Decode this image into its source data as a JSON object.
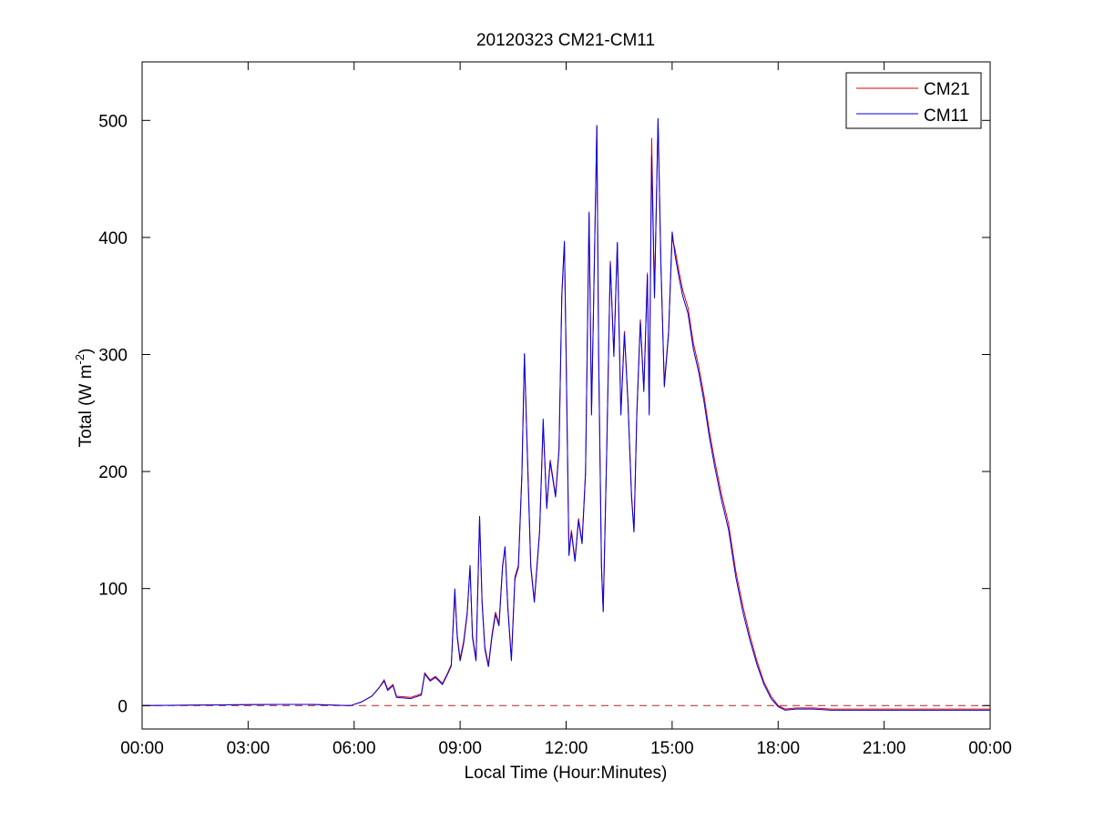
{
  "chart_data": {
    "type": "line",
    "title": "20120323 CM21-CM11",
    "xlabel": "Local Time (Hour:Minutes)",
    "ylabel": "Total (W m",
    "ylabel_sup": "-2",
    "ylabel_close": ")",
    "xlim": [
      0,
      24
    ],
    "ylim": [
      -20,
      550
    ],
    "x_ticks": [
      {
        "value": 0,
        "label": "00:00"
      },
      {
        "value": 3,
        "label": "03:00"
      },
      {
        "value": 6,
        "label": "06:00"
      },
      {
        "value": 9,
        "label": "09:00"
      },
      {
        "value": 12,
        "label": "12:00"
      },
      {
        "value": 15,
        "label": "15:00"
      },
      {
        "value": 18,
        "label": "18:00"
      },
      {
        "value": 21,
        "label": "21:00"
      },
      {
        "value": 24,
        "label": "00:00"
      }
    ],
    "y_ticks": [
      {
        "value": 0,
        "label": "0"
      },
      {
        "value": 100,
        "label": "100"
      },
      {
        "value": 200,
        "label": "200"
      },
      {
        "value": 300,
        "label": "300"
      },
      {
        "value": 400,
        "label": "400"
      },
      {
        "value": 500,
        "label": "500"
      }
    ],
    "grid": false,
    "legend_position": "top-right",
    "reference_line": {
      "y": 0,
      "style": "dashed",
      "color": "#b22222"
    },
    "series": [
      {
        "name": "CM21",
        "color": "#e00000",
        "points": [
          [
            0,
            0
          ],
          [
            3.8,
            1
          ],
          [
            4.8,
            1
          ],
          [
            5.9,
            0
          ],
          [
            6.2,
            3
          ],
          [
            6.5,
            8
          ],
          [
            6.7,
            15
          ],
          [
            6.85,
            22
          ],
          [
            6.95,
            14
          ],
          [
            7.1,
            18
          ],
          [
            7.2,
            8
          ],
          [
            7.6,
            7
          ],
          [
            7.9,
            10
          ],
          [
            8.0,
            28
          ],
          [
            8.15,
            22
          ],
          [
            8.3,
            25
          ],
          [
            8.5,
            19
          ],
          [
            8.65,
            28
          ],
          [
            8.75,
            35
          ],
          [
            8.85,
            95
          ],
          [
            8.92,
            60
          ],
          [
            9.0,
            40
          ],
          [
            9.1,
            55
          ],
          [
            9.2,
            80
          ],
          [
            9.28,
            118
          ],
          [
            9.35,
            60
          ],
          [
            9.45,
            40
          ],
          [
            9.55,
            160
          ],
          [
            9.62,
            90
          ],
          [
            9.7,
            50
          ],
          [
            9.8,
            35
          ],
          [
            9.9,
            60
          ],
          [
            10.0,
            80
          ],
          [
            10.1,
            70
          ],
          [
            10.2,
            120
          ],
          [
            10.27,
            135
          ],
          [
            10.35,
            85
          ],
          [
            10.45,
            40
          ],
          [
            10.55,
            110
          ],
          [
            10.65,
            120
          ],
          [
            10.75,
            200
          ],
          [
            10.82,
            300
          ],
          [
            10.9,
            220
          ],
          [
            11.0,
            120
          ],
          [
            11.1,
            90
          ],
          [
            11.25,
            150
          ],
          [
            11.35,
            240
          ],
          [
            11.45,
            170
          ],
          [
            11.55,
            210
          ],
          [
            11.7,
            180
          ],
          [
            11.8,
            220
          ],
          [
            11.88,
            350
          ],
          [
            11.95,
            395
          ],
          [
            12.0,
            300
          ],
          [
            12.08,
            130
          ],
          [
            12.15,
            150
          ],
          [
            12.25,
            125
          ],
          [
            12.35,
            160
          ],
          [
            12.45,
            140
          ],
          [
            12.55,
            200
          ],
          [
            12.65,
            420
          ],
          [
            12.72,
            250
          ],
          [
            12.8,
            380
          ],
          [
            12.87,
            495
          ],
          [
            12.92,
            300
          ],
          [
            13.0,
            120
          ],
          [
            13.05,
            80
          ],
          [
            13.15,
            220
          ],
          [
            13.25,
            380
          ],
          [
            13.35,
            300
          ],
          [
            13.45,
            395
          ],
          [
            13.55,
            250
          ],
          [
            13.65,
            320
          ],
          [
            13.75,
            260
          ],
          [
            13.85,
            180
          ],
          [
            13.92,
            150
          ],
          [
            14.0,
            250
          ],
          [
            14.1,
            330
          ],
          [
            14.2,
            270
          ],
          [
            14.3,
            370
          ],
          [
            14.35,
            250
          ],
          [
            14.42,
            485
          ],
          [
            14.5,
            350
          ],
          [
            14.6,
            500
          ],
          [
            14.68,
            380
          ],
          [
            14.78,
            275
          ],
          [
            14.9,
            320
          ],
          [
            15.0,
            400
          ],
          [
            15.08,
            390
          ],
          [
            15.2,
            370
          ],
          [
            15.3,
            355
          ],
          [
            15.45,
            340
          ],
          [
            15.6,
            310
          ],
          [
            15.75,
            290
          ],
          [
            15.9,
            265
          ],
          [
            16.05,
            235
          ],
          [
            16.2,
            210
          ],
          [
            16.4,
            180
          ],
          [
            16.6,
            155
          ],
          [
            16.8,
            115
          ],
          [
            17.0,
            85
          ],
          [
            17.2,
            60
          ],
          [
            17.4,
            38
          ],
          [
            17.6,
            20
          ],
          [
            17.8,
            8
          ],
          [
            18.0,
            0
          ],
          [
            18.2,
            -3
          ],
          [
            18.5,
            -2
          ],
          [
            19.0,
            -2
          ],
          [
            19.5,
            -3
          ],
          [
            20.0,
            -3
          ],
          [
            21.0,
            -3
          ],
          [
            22.0,
            -3
          ],
          [
            23.0,
            -3
          ],
          [
            24.0,
            -3
          ]
        ]
      },
      {
        "name": "CM11",
        "color": "#0000e0",
        "points": [
          [
            0,
            0
          ],
          [
            3.8,
            1
          ],
          [
            4.8,
            1
          ],
          [
            5.9,
            0
          ],
          [
            6.2,
            3
          ],
          [
            6.5,
            8
          ],
          [
            6.7,
            15
          ],
          [
            6.85,
            21
          ],
          [
            6.95,
            13
          ],
          [
            7.1,
            17
          ],
          [
            7.2,
            7
          ],
          [
            7.6,
            6
          ],
          [
            7.9,
            9
          ],
          [
            8.0,
            27
          ],
          [
            8.15,
            21
          ],
          [
            8.3,
            24
          ],
          [
            8.5,
            18
          ],
          [
            8.65,
            27
          ],
          [
            8.75,
            34
          ],
          [
            8.85,
            100
          ],
          [
            8.92,
            58
          ],
          [
            9.0,
            38
          ],
          [
            9.1,
            53
          ],
          [
            9.2,
            78
          ],
          [
            9.28,
            120
          ],
          [
            9.35,
            58
          ],
          [
            9.45,
            38
          ],
          [
            9.55,
            162
          ],
          [
            9.62,
            88
          ],
          [
            9.7,
            48
          ],
          [
            9.8,
            33
          ],
          [
            9.9,
            58
          ],
          [
            10.0,
            78
          ],
          [
            10.1,
            68
          ],
          [
            10.2,
            118
          ],
          [
            10.27,
            136
          ],
          [
            10.35,
            83
          ],
          [
            10.45,
            38
          ],
          [
            10.55,
            108
          ],
          [
            10.65,
            118
          ],
          [
            10.75,
            198
          ],
          [
            10.82,
            301
          ],
          [
            10.9,
            218
          ],
          [
            11.0,
            118
          ],
          [
            11.1,
            88
          ],
          [
            11.25,
            148
          ],
          [
            11.35,
            245
          ],
          [
            11.45,
            168
          ],
          [
            11.55,
            208
          ],
          [
            11.7,
            178
          ],
          [
            11.8,
            218
          ],
          [
            11.88,
            352
          ],
          [
            11.95,
            397
          ],
          [
            12.0,
            298
          ],
          [
            12.08,
            128
          ],
          [
            12.15,
            148
          ],
          [
            12.25,
            123
          ],
          [
            12.35,
            158
          ],
          [
            12.45,
            138
          ],
          [
            12.55,
            198
          ],
          [
            12.65,
            422
          ],
          [
            12.72,
            248
          ],
          [
            12.8,
            378
          ],
          [
            12.87,
            496
          ],
          [
            12.92,
            298
          ],
          [
            13.0,
            118
          ],
          [
            13.05,
            80
          ],
          [
            13.15,
            218
          ],
          [
            13.25,
            378
          ],
          [
            13.35,
            298
          ],
          [
            13.45,
            396
          ],
          [
            13.55,
            248
          ],
          [
            13.65,
            318
          ],
          [
            13.75,
            258
          ],
          [
            13.85,
            178
          ],
          [
            13.92,
            148
          ],
          [
            14.0,
            248
          ],
          [
            14.1,
            328
          ],
          [
            14.2,
            268
          ],
          [
            14.3,
            368
          ],
          [
            14.35,
            248
          ],
          [
            14.42,
            470
          ],
          [
            14.5,
            348
          ],
          [
            14.6,
            502
          ],
          [
            14.68,
            378
          ],
          [
            14.78,
            272
          ],
          [
            14.9,
            318
          ],
          [
            15.0,
            405
          ],
          [
            15.08,
            385
          ],
          [
            15.2,
            365
          ],
          [
            15.3,
            350
          ],
          [
            15.45,
            335
          ],
          [
            15.6,
            305
          ],
          [
            15.75,
            285
          ],
          [
            15.9,
            260
          ],
          [
            16.05,
            230
          ],
          [
            16.2,
            205
          ],
          [
            16.4,
            175
          ],
          [
            16.6,
            150
          ],
          [
            16.8,
            110
          ],
          [
            17.0,
            80
          ],
          [
            17.2,
            56
          ],
          [
            17.4,
            35
          ],
          [
            17.6,
            18
          ],
          [
            17.8,
            6
          ],
          [
            18.0,
            -1
          ],
          [
            18.2,
            -4
          ],
          [
            18.5,
            -3
          ],
          [
            19.0,
            -3
          ],
          [
            19.5,
            -4
          ],
          [
            20.0,
            -4
          ],
          [
            21.0,
            -4
          ],
          [
            22.0,
            -4
          ],
          [
            23.0,
            -4
          ],
          [
            24.0,
            -4
          ]
        ]
      }
    ]
  }
}
